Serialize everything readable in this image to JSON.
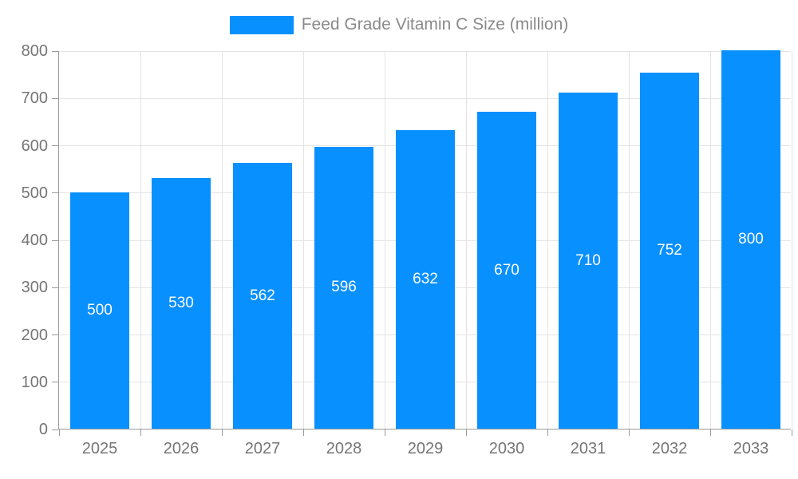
{
  "chart_data": {
    "type": "bar",
    "title": "Feed Grade Vitamin C Size (million)",
    "legend_label": "Feed Grade Vitamin C Size (million)",
    "legend_position": "top-center",
    "categories": [
      "2025",
      "2026",
      "2027",
      "2028",
      "2029",
      "2030",
      "2031",
      "2032",
      "2033"
    ],
    "series": [
      {
        "name": "Feed Grade Vitamin C Size (million)",
        "values": [
          500,
          530,
          562,
          596,
          632,
          670,
          710,
          752,
          800
        ]
      }
    ],
    "value_labels_shown": true,
    "value_label_position": "middle-of-bar",
    "xlabel": "",
    "ylabel": "",
    "ylim": [
      0,
      800
    ],
    "ytick_step": 100,
    "grid": true,
    "colors": {
      "bar": "#0990ff",
      "axis_line": "#9a9a9a",
      "grid_line": "#e4e4e4",
      "tick_text": "#757575",
      "value_text": "#ffffff",
      "legend_text": "#8a8a8a"
    }
  }
}
